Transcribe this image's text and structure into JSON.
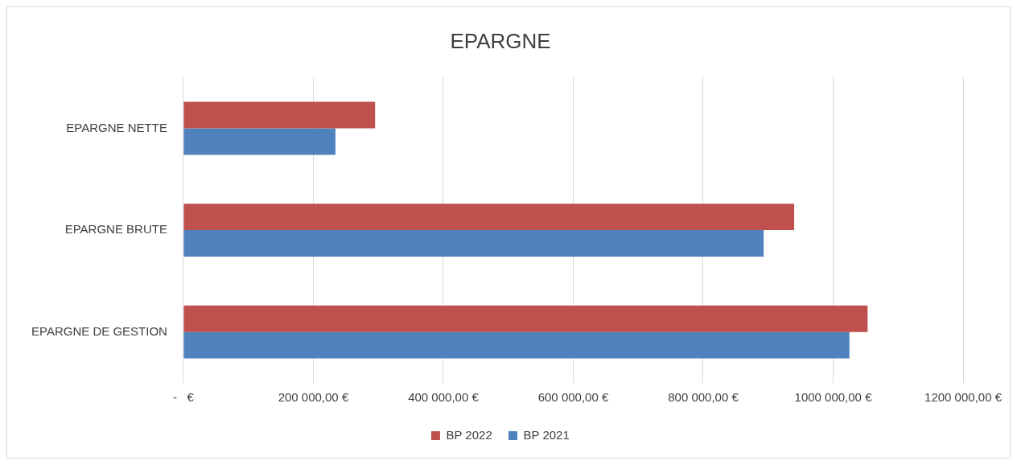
{
  "chart_data": {
    "type": "bar",
    "orientation": "horizontal",
    "title": "EPARGNE",
    "categories": [
      "EPARGNE NETTE",
      "EPARGNE BRUTE",
      "EPARGNE DE GESTION"
    ],
    "series": [
      {
        "name": "BP 2022",
        "color": "#c0504d",
        "values": [
          295000,
          940000,
          1053000
        ]
      },
      {
        "name": "BP 2021",
        "color": "#4f81bd",
        "values": [
          234000,
          893000,
          1025000
        ]
      }
    ],
    "xlim": [
      0,
      1200000
    ],
    "xticks": [
      {
        "value": 0,
        "label": "-   €"
      },
      {
        "value": 200000,
        "label": "200 000,00 €"
      },
      {
        "value": 400000,
        "label": "400 000,00 €"
      },
      {
        "value": 600000,
        "label": "600 000,00 €"
      },
      {
        "value": 800000,
        "label": "800 000,00 €"
      },
      {
        "value": 1000000,
        "label": "1000 000,00 €"
      },
      {
        "value": 1200000,
        "label": "1200 000,00 €"
      }
    ],
    "grid": "x",
    "legend": "bottom"
  }
}
